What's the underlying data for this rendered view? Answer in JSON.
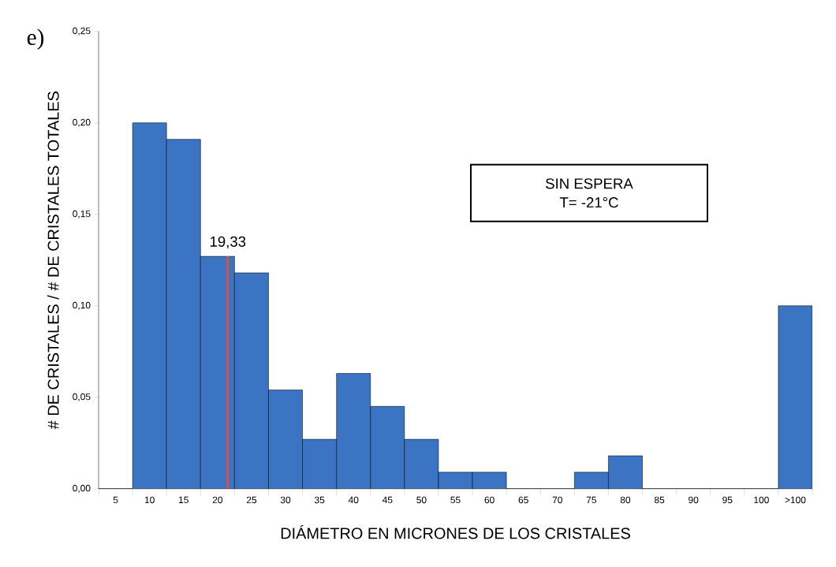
{
  "chart_data": {
    "type": "bar",
    "xlabel": "DIÁMETRO EN MICRONES DE LOS CRISTALES",
    "ylabel": "# DE CRISTALES / # DE CRISTALES TOTALES",
    "categories": [
      "5",
      "10",
      "15",
      "20",
      "25",
      "30",
      "35",
      "40",
      "45",
      "50",
      "55",
      "60",
      "65",
      "70",
      "75",
      "80",
      "85",
      "90",
      "95",
      "100",
      ">100"
    ],
    "values": [
      0,
      0.2,
      0.191,
      0.127,
      0.118,
      0.054,
      0.027,
      0.063,
      0.045,
      0.027,
      0.009,
      0.009,
      0,
      0,
      0.009,
      0.018,
      0,
      0,
      0,
      0,
      0.1
    ],
    "color": "#3a74c2",
    "ylim": [
      0,
      0.25
    ],
    "yticks": [
      {
        "value": 0,
        "label": "0,00"
      },
      {
        "value": 0.05,
        "label": "0,05"
      },
      {
        "value": 0.1,
        "label": "0,10"
      },
      {
        "value": 0.15,
        "label": "0,15"
      },
      {
        "value": 0.2,
        "label": "0,20"
      },
      {
        "value": 0.25,
        "label": "0,25"
      }
    ],
    "ref_lines": [
      {
        "axis": "x",
        "value": "20",
        "label": "19,33",
        "color": "#d0504a"
      }
    ],
    "annotations": [
      "e)",
      "SIN ESPERA",
      "T= -21°C"
    ],
    "grid": false
  }
}
